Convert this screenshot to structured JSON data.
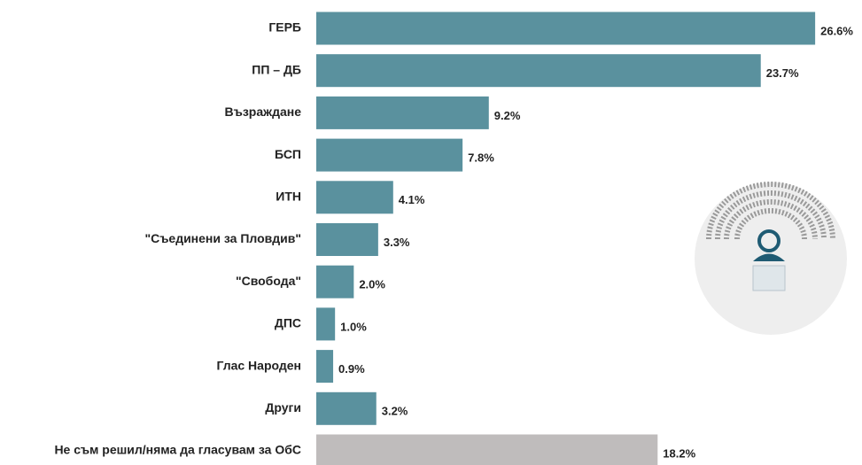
{
  "chart_data": {
    "type": "hbar",
    "categories": [
      "ГЕРБ",
      "ПП – ДБ",
      "Възраждане",
      "БСП",
      "ИТН",
      "\"Съединени за Пловдив\"",
      "\"Свобода\"",
      "ДПС",
      "Глас Народен",
      "Други",
      "Не съм решил/няма да гласувам за ОбС"
    ],
    "values": [
      26.6,
      23.7,
      9.2,
      7.8,
      4.1,
      3.3,
      2.0,
      1.0,
      0.9,
      3.2,
      18.2
    ],
    "value_labels": [
      "26.6%",
      "23.7%",
      "9.2%",
      "7.8%",
      "4.1%",
      "3.3%",
      "2.0%",
      "1.0%",
      "0.9%",
      "3.2%",
      "18.2%"
    ],
    "colors": [
      "#5a919e",
      "#5a919e",
      "#5a919e",
      "#5a919e",
      "#5a919e",
      "#5a919e",
      "#5a919e",
      "#5a919e",
      "#5a919e",
      "#5a919e",
      "#bfbcbc"
    ]
  }
}
